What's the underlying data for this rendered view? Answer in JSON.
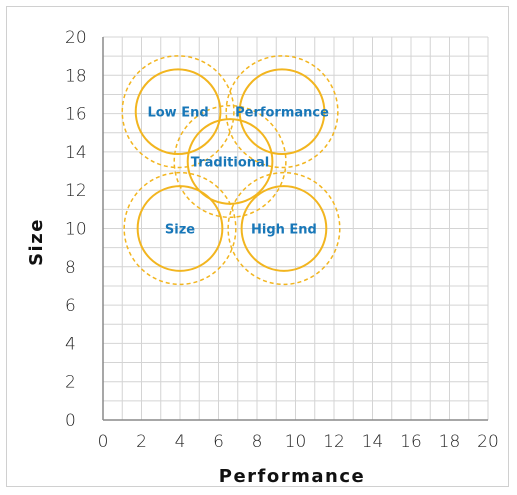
{
  "chart_data": {
    "type": "scatter",
    "title": "",
    "xlabel": "Performance",
    "ylabel": "Size",
    "xlim": [
      0,
      20
    ],
    "ylim": [
      0,
      20
    ],
    "x_ticks": [
      "0",
      "2",
      "4",
      "6",
      "8",
      "10",
      "12",
      "14",
      "16",
      "18",
      "20"
    ],
    "y_ticks": [
      "0",
      "2",
      "4",
      "6",
      "8",
      "10",
      "12",
      "14",
      "16",
      "18",
      "20"
    ],
    "grid": true,
    "segments": [
      {
        "name": "Low End",
        "x": 3.9,
        "y": 16.1,
        "r_inner": 2.2,
        "r_outer": 2.9
      },
      {
        "name": "Performance",
        "x": 9.3,
        "y": 16.1,
        "r_inner": 2.2,
        "r_outer": 2.9
      },
      {
        "name": "Traditional",
        "x": 6.6,
        "y": 13.5,
        "r_inner": 2.2,
        "r_outer": 2.9
      },
      {
        "name": "Size",
        "x": 4.0,
        "y": 10.0,
        "r_inner": 2.2,
        "r_outer": 2.9
      },
      {
        "name": "High End",
        "x": 9.4,
        "y": 10.0,
        "r_inner": 2.2,
        "r_outer": 2.9
      }
    ],
    "colors": {
      "circle": "#f2b51f",
      "label": "#1877b8",
      "grid": "#d4d4d4",
      "axis": "#8a8a8a"
    }
  }
}
